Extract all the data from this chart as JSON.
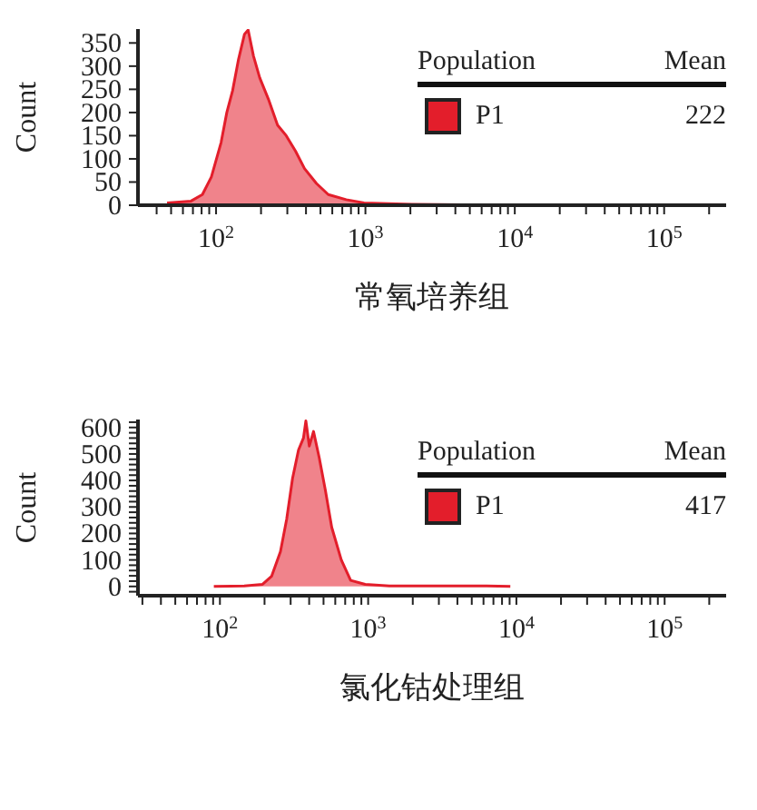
{
  "chart_data": [
    {
      "type": "area",
      "xlabel": "常氧培养组",
      "ylabel": "Count",
      "log": "x",
      "legend": "top right",
      "legend_title": "Population",
      "annotations": [
        "Mean",
        "222"
      ],
      "xlim": [
        30,
        260000
      ],
      "ylim": [
        0,
        380
      ],
      "xticks": [
        {
          "value": 40,
          "label": null
        },
        {
          "value": 50,
          "label": null
        },
        {
          "value": 60,
          "label": null
        },
        {
          "value": 70,
          "label": null
        },
        {
          "value": 80,
          "label": null
        },
        {
          "value": 90,
          "label": null
        },
        {
          "value": 100,
          "label": "10$^{2}$"
        },
        {
          "value": 200,
          "label": null
        },
        {
          "value": 300,
          "label": null
        },
        {
          "value": 400,
          "label": null
        },
        {
          "value": 500,
          "label": null
        },
        {
          "value": 600,
          "label": null
        },
        {
          "value": 700,
          "label": null
        },
        {
          "value": 800,
          "label": null
        },
        {
          "value": 900,
          "label": null
        },
        {
          "value": 1000,
          "label": "10$^{3}$"
        },
        {
          "value": 2000,
          "label": null
        },
        {
          "value": 3000,
          "label": null
        },
        {
          "value": 4000,
          "label": null
        },
        {
          "value": 5000,
          "label": null
        },
        {
          "value": 6000,
          "label": null
        },
        {
          "value": 7000,
          "label": null
        },
        {
          "value": 8000,
          "label": null
        },
        {
          "value": 9000,
          "label": null
        },
        {
          "value": 10000,
          "label": "10$^{4}$"
        },
        {
          "value": 20000,
          "label": null
        },
        {
          "value": 30000,
          "label": null
        },
        {
          "value": 40000,
          "label": null
        },
        {
          "value": 50000,
          "label": null
        },
        {
          "value": 60000,
          "label": null
        },
        {
          "value": 70000,
          "label": null
        },
        {
          "value": 80000,
          "label": null
        },
        {
          "value": 90000,
          "label": null
        },
        {
          "value": 100000,
          "label": "10$^{5}$"
        },
        {
          "value": 200000,
          "label": null
        }
      ],
      "yticks": [
        0,
        50,
        100,
        150,
        200,
        250,
        300,
        350
      ],
      "series": [
        {
          "name": "P1",
          "color": "#e31e2b",
          "x": [
            47,
            68,
            81,
            93,
            108,
            118,
            129,
            141,
            155,
            164,
            178,
            196,
            224,
            258,
            295,
            340,
            391,
            470,
            564,
            744,
            980,
            2050,
            5150,
            6000
          ],
          "values": [
            5,
            9,
            23,
            61,
            135,
            200,
            247,
            313,
            369,
            378,
            322,
            275,
            229,
            173,
            150,
            117,
            79,
            47,
            23,
            12,
            5,
            2,
            1,
            0
          ]
        }
      ]
    },
    {
      "type": "area",
      "xlabel": "氯化钴处理组",
      "ylabel": "Count",
      "log": "x",
      "legend": "top right",
      "legend_title": "Population",
      "annotations": [
        "Mean",
        "417"
      ],
      "xlim": [
        28,
        260000
      ],
      "ylim": [
        -35,
        630
      ],
      "xticks": [
        {
          "value": 30,
          "label": null
        },
        {
          "value": 40,
          "label": null
        },
        {
          "value": 50,
          "label": null
        },
        {
          "value": 60,
          "label": null
        },
        {
          "value": 70,
          "label": null
        },
        {
          "value": 80,
          "label": null
        },
        {
          "value": 90,
          "label": null
        },
        {
          "value": 100,
          "label": "10$^{2}$"
        },
        {
          "value": 200,
          "label": null
        },
        {
          "value": 300,
          "label": null
        },
        {
          "value": 400,
          "label": null
        },
        {
          "value": 500,
          "label": null
        },
        {
          "value": 600,
          "label": null
        },
        {
          "value": 700,
          "label": null
        },
        {
          "value": 800,
          "label": null
        },
        {
          "value": 900,
          "label": null
        },
        {
          "value": 1000,
          "label": "10$^{3}$"
        },
        {
          "value": 2000,
          "label": null
        },
        {
          "value": 3000,
          "label": null
        },
        {
          "value": 4000,
          "label": null
        },
        {
          "value": 5000,
          "label": null
        },
        {
          "value": 6000,
          "label": null
        },
        {
          "value": 7000,
          "label": null
        },
        {
          "value": 8000,
          "label": null
        },
        {
          "value": 9000,
          "label": null
        },
        {
          "value": 10000,
          "label": "10$^{4}$"
        },
        {
          "value": 20000,
          "label": null
        },
        {
          "value": 30000,
          "label": null
        },
        {
          "value": 40000,
          "label": null
        },
        {
          "value": 50000,
          "label": null
        },
        {
          "value": 60000,
          "label": null
        },
        {
          "value": 70000,
          "label": null
        },
        {
          "value": 80000,
          "label": null
        },
        {
          "value": 90000,
          "label": null
        },
        {
          "value": 100000,
          "label": "10$^{5}$"
        },
        {
          "value": 200000,
          "label": null
        }
      ],
      "yticks": [
        {
          "value": -20,
          "label": null
        },
        0,
        {
          "value": 20,
          "label": null
        },
        {
          "value": 40,
          "label": null
        },
        {
          "value": 60,
          "label": null
        },
        {
          "value": 80,
          "label": null
        },
        100,
        {
          "value": 120,
          "label": null
        },
        {
          "value": 140,
          "label": null
        },
        {
          "value": 160,
          "label": null
        },
        {
          "value": 180,
          "label": null
        },
        200,
        {
          "value": 220,
          "label": null
        },
        {
          "value": 240,
          "label": null
        },
        {
          "value": 260,
          "label": null
        },
        {
          "value": 280,
          "label": null
        },
        300,
        {
          "value": 320,
          "label": null
        },
        {
          "value": 340,
          "label": null
        },
        {
          "value": 360,
          "label": null
        },
        {
          "value": 380,
          "label": null
        },
        400,
        {
          "value": 420,
          "label": null
        },
        {
          "value": 440,
          "label": null
        },
        {
          "value": 460,
          "label": null
        },
        {
          "value": 480,
          "label": null
        },
        500,
        {
          "value": 520,
          "label": null
        },
        {
          "value": 540,
          "label": null
        },
        {
          "value": 560,
          "label": null
        },
        {
          "value": 580,
          "label": null
        },
        600,
        {
          "value": 620,
          "label": null
        }
      ],
      "series": [
        {
          "name": "P1",
          "color": "#e31e2b",
          "x": [
            91,
            146,
            194,
            223,
            256,
            282,
            309,
            339,
            366,
            380,
            401,
            428,
            468,
            515,
            568,
            659,
            762,
            955,
            1390,
            6300,
            9100
          ],
          "values": [
            0,
            2,
            8,
            38,
            131,
            254,
            408,
            515,
            560,
            625,
            530,
            585,
            485,
            362,
            223,
            100,
            23,
            8,
            2,
            2,
            0
          ]
        }
      ]
    }
  ]
}
